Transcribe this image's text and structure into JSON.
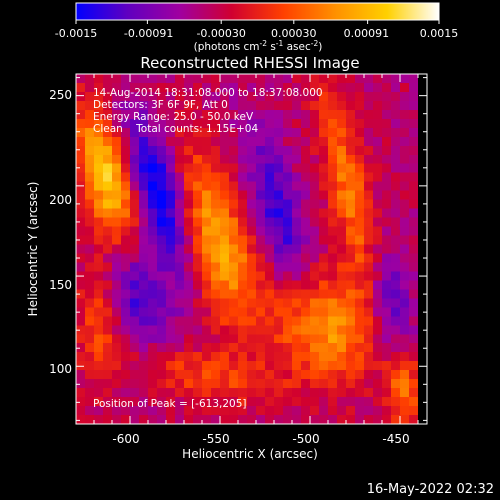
{
  "colorbar": {
    "ticks": [
      "-0.0015",
      "-0.00091",
      "-0.00030",
      "0.00030",
      "0.00091",
      "0.0015"
    ],
    "tick_values": [
      -0.0015,
      -0.00091,
      -0.0003,
      0.0003,
      0.00091,
      0.0015
    ],
    "range": [
      -0.0015,
      0.0015
    ],
    "units_prefix": "(photons cm",
    "units_exp1": "-2",
    "units_mid1": " s",
    "units_exp2": "-1",
    "units_mid2": " asec",
    "units_exp3": "-2",
    "units_suffix": ")"
  },
  "annotations": {
    "time_range": "14-Aug-2014 18:31:08.000 to 18:37:08.000",
    "detectors": "Detectors: 3F 6F 9F, Att 0",
    "energy": "Energy Range: 25.0 - 50.0 keV",
    "clean": "Clean    Total counts: 1.15E+04",
    "peak": "Position of Peak = [-613,205]"
  },
  "footer": {
    "timestamp": "16-May-2022 02:32"
  },
  "chart_data": {
    "type": "heatmap",
    "title": "Reconstructed RHESSI Image",
    "xlabel": "Heliocentric X (arcsec)",
    "ylabel": "Heliocentric Y (arcsec)",
    "xlim": [
      -630,
      -435
    ],
    "ylim": [
      68,
      262
    ],
    "xticks": [
      -600,
      -550,
      -500,
      -450
    ],
    "xtick_labels": [
      "-600",
      "-550",
      "-500",
      "-450"
    ],
    "yticks": [
      100,
      150,
      200,
      250
    ],
    "ytick_labels": [
      "100",
      "150",
      "200",
      "250"
    ],
    "value_range": [
      -0.0015,
      0.0015
    ],
    "peak_position": [
      -613,
      205
    ],
    "colormap": [
      "#0000ff",
      "#6000c0",
      "#a000a0",
      "#d00030",
      "#ff4000",
      "#ff9000",
      "#ffd000",
      "#ffffff"
    ],
    "features": [
      {
        "kind": "source",
        "x": -553,
        "y": 170,
        "sx": 13,
        "sy": 36,
        "tilt_deg": -18,
        "value": 0.00125
      },
      {
        "kind": "source",
        "x": -613,
        "y": 205,
        "sx": 10,
        "sy": 28,
        "tilt_deg": -15,
        "value": 0.00145
      },
      {
        "kind": "source",
        "x": -478,
        "y": 195,
        "sx": 8,
        "sy": 50,
        "tilt_deg": -12,
        "value": 0.00085
      },
      {
        "kind": "source",
        "x": -492,
        "y": 122,
        "sx": 18,
        "sy": 22,
        "tilt_deg": -30,
        "value": 0.0011
      },
      {
        "kind": "source",
        "x": -448,
        "y": 90,
        "sx": 7,
        "sy": 20,
        "tilt_deg": 0,
        "value": 0.0009
      },
      {
        "kind": "source",
        "x": -618,
        "y": 125,
        "sx": 8,
        "sy": 25,
        "tilt_deg": 0,
        "value": 0.00065
      },
      {
        "kind": "source",
        "x": -560,
        "y": 95,
        "sx": 30,
        "sy": 10,
        "tilt_deg": 10,
        "value": 0.0006
      },
      {
        "kind": "negative",
        "x": -583,
        "y": 195,
        "sx": 10,
        "sy": 32,
        "tilt_deg": -18,
        "value": -0.00135
      },
      {
        "kind": "negative",
        "x": -518,
        "y": 185,
        "sx": 9,
        "sy": 32,
        "tilt_deg": -15,
        "value": -0.0009
      },
      {
        "kind": "negative",
        "x": -455,
        "y": 130,
        "sx": 9,
        "sy": 25,
        "tilt_deg": -10,
        "value": -0.0009
      },
      {
        "kind": "negative",
        "x": -595,
        "y": 140,
        "sx": 12,
        "sy": 22,
        "tilt_deg": -20,
        "value": -0.0008
      }
    ]
  }
}
